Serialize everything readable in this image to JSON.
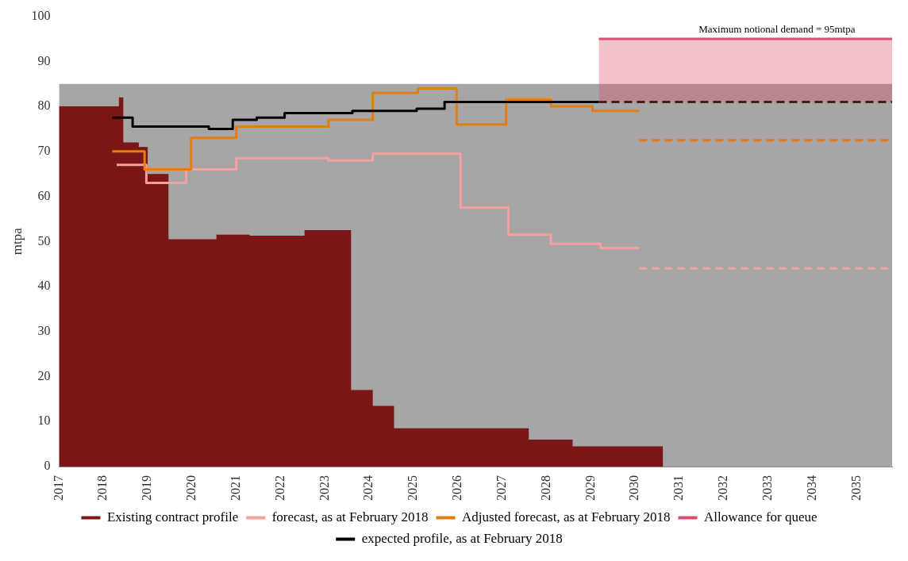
{
  "chart_data": {
    "type": "step",
    "ylabel": "mtpa",
    "xlim": [
      2017,
      2035.8
    ],
    "xticks": [
      2017,
      2018,
      2019,
      2020,
      2021,
      2022,
      2023,
      2024,
      2025,
      2026,
      2027,
      2028,
      2029,
      2030,
      2031,
      2032,
      2033,
      2034,
      2035
    ],
    "ylim": [
      0,
      100
    ],
    "yticks": [
      0,
      10,
      20,
      30,
      40,
      50,
      60,
      70,
      80,
      90,
      100
    ],
    "grid": false,
    "legend": "bottom",
    "annotations": [
      {
        "text": "Maximum notional demand = 95mtpa",
        "x": 2033.2,
        "y": 95
      }
    ],
    "series": [
      {
        "type": "area",
        "color": "#a6a6a6",
        "x": [
          2017,
          2035.8
        ],
        "values": [
          85,
          85
        ]
      },
      {
        "name": "Existing contract profile",
        "type": "area",
        "color": "#7b1616",
        "x": [
          2017,
          2018.35,
          2018.45,
          2018.8,
          2019.0,
          2019.47,
          2020.55,
          2021.3,
          2022.54,
          2023.59,
          2024.08,
          2024.56,
          2027.6,
          2028.59,
          2030.63
        ],
        "values": [
          80,
          82,
          72,
          71,
          65,
          50.5,
          51.5,
          51.3,
          52.5,
          17,
          13.5,
          8.5,
          6,
          4.5,
          0
        ]
      },
      {
        "name": "forecast, as at February 2018",
        "color": "#f2a0a0",
        "line_style": "solid",
        "x": [
          2018.3,
          2018.97,
          2019.87,
          2021.0,
          2023.08,
          2024.08,
          2026.06,
          2027.14,
          2028.1,
          2029.22,
          2030.09
        ],
        "values": [
          67,
          63,
          66,
          68.5,
          68,
          69.5,
          57.5,
          51.5,
          49.5,
          48.5,
          48.5
        ]
      },
      {
        "color": "#f2a0a0",
        "line_style": "dashed",
        "x": [
          2030.09,
          2035.8
        ],
        "values": [
          44,
          44
        ]
      },
      {
        "name": "Adjusted forecast, as at February 2018",
        "color": "#e47d12",
        "line_style": "solid",
        "x": [
          2018.2,
          2018.93,
          2019.98,
          2021.0,
          2023.08,
          2024.08,
          2025.1,
          2025.97,
          2027.09,
          2028.1,
          2029.04,
          2030.09
        ],
        "values": [
          70,
          66,
          73,
          75.5,
          77,
          83,
          84,
          76,
          81.5,
          80,
          79,
          79
        ]
      },
      {
        "color": "#e47d12",
        "line_style": "dashed",
        "x": [
          2030.09,
          2035.8
        ],
        "values": [
          72.5,
          72.5
        ]
      },
      {
        "name": "Allowance for queue",
        "color": "#d9506e",
        "line_style": "solid",
        "x": [
          2029.18,
          2035.8
        ],
        "values": [
          95,
          95
        ],
        "lower": [
          81,
          81
        ],
        "upper": [
          95,
          95
        ]
      },
      {
        "name": "expected profile, as at February 2018",
        "color": "#000000",
        "line_style": "solid",
        "x": [
          2018.2,
          2018.66,
          2020.38,
          2020.92,
          2021.46,
          2022.09,
          2023.62,
          2025.07,
          2025.7,
          2029.18
        ],
        "values": [
          77.5,
          75.5,
          75,
          77,
          77.5,
          78.5,
          79,
          79.5,
          81,
          81
        ]
      },
      {
        "color": "#4a1a1a",
        "line_style": "dashed",
        "x": [
          2029.18,
          2035.8
        ],
        "values": [
          81,
          81
        ]
      }
    ]
  }
}
